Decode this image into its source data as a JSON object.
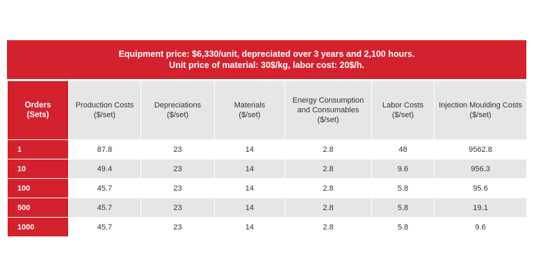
{
  "banner": {
    "line1": "Equipment price: $6,330/unit, depreciated over 3 years and 2,100 hours.",
    "line2": "Unit price of material: 30$/kg, labor cost: 20$/h."
  },
  "columns": [
    {
      "line1": "Orders",
      "line2": "(Sets)"
    },
    {
      "line1": "Production Costs",
      "line2": "($/set)"
    },
    {
      "line1": "Depreciations",
      "line2": "($/set)"
    },
    {
      "line1": "Materials",
      "line2": "($/set)"
    },
    {
      "line1": "Energy Consumption",
      "line2": "and Consumables",
      "line3": "($/set)"
    },
    {
      "line1": "Labor Costs",
      "line2": "($/set)"
    },
    {
      "line1": "Injection Moulding Costs",
      "line2": "($/set)"
    }
  ],
  "rows": [
    [
      "1",
      "87.8",
      "23",
      "14",
      "2.8",
      "48",
      "9562.8"
    ],
    [
      "10",
      "49.4",
      "23",
      "14",
      "2.8",
      "9.6",
      "956.3"
    ],
    [
      "100",
      "45.7",
      "23",
      "14",
      "2.8",
      "5.8",
      "95.6"
    ],
    [
      "500",
      "45.7",
      "23",
      "14",
      "2.8",
      "5.8",
      "19.1"
    ],
    [
      "1000",
      "45.7",
      "23",
      "14",
      "2.8",
      "5.8",
      "9.6"
    ]
  ],
  "colors": {
    "accent_red": "#d3222e",
    "stripe_gray": "#e6e6e6"
  }
}
